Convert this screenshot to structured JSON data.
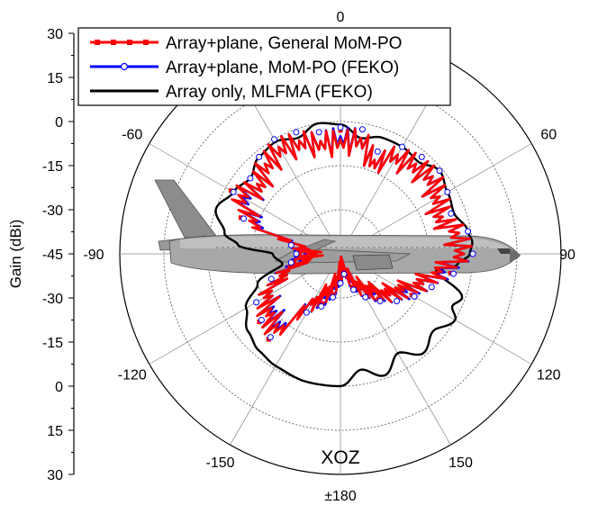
{
  "chart_data": {
    "type": "polar-line",
    "plane_label": "XOZ",
    "ylabel": "Gain (dBi)",
    "radial_axis": {
      "unit": "dBi",
      "min": -45,
      "max": 30,
      "ticks": [
        30,
        15,
        0,
        -15,
        -30,
        -45,
        -30,
        -15,
        0,
        15,
        30
      ],
      "tick_labels": [
        "30",
        "15",
        "0",
        "-15",
        "-30",
        "-45",
        "-30",
        "-15",
        "0",
        "15",
        "30"
      ]
    },
    "angular_axis": {
      "unit": "deg",
      "zero_direction": "top",
      "direction": "clockwise",
      "labels": [
        {
          "angle": 0,
          "text": "0"
        },
        {
          "angle": 60,
          "text": "60"
        },
        {
          "angle": 90,
          "text": "90"
        },
        {
          "angle": 120,
          "text": "120"
        },
        {
          "angle": 150,
          "text": "150"
        },
        {
          "angle": 180,
          "text": "±180"
        },
        {
          "angle": -150,
          "text": "-150"
        },
        {
          "angle": -120,
          "text": "-120"
        },
        {
          "angle": -90,
          "text": "-90"
        },
        {
          "angle": -60,
          "text": "-60"
        }
      ]
    },
    "legend": {
      "position": "top-left",
      "entries": [
        {
          "label": "Array+plane, General MoM-PO",
          "color": "#ff0000",
          "marker": "square"
        },
        {
          "label": "Array+plane, MoM-PO (FEKO)",
          "color": "#0000ff",
          "marker": "open-circle"
        },
        {
          "label": "Array only, MLFMA (FEKO)",
          "color": "#000000",
          "marker": "none"
        }
      ]
    },
    "series": [
      {
        "name": "Array only, MLFMA (FEKO)",
        "color": "#000000",
        "theta": [
          -180,
          -165,
          -150,
          -140,
          -130,
          -120,
          -110,
          -100,
          -90,
          -85,
          -80,
          -70,
          -60,
          -50,
          -40,
          -30,
          -20,
          -10,
          0,
          10,
          20,
          30,
          40,
          50,
          60,
          70,
          80,
          85,
          90,
          95,
          100,
          110,
          115,
          120,
          130,
          140,
          150,
          160,
          170,
          180
        ],
        "r": [
          0,
          0,
          -1,
          -2,
          -4,
          -8,
          -15,
          -25,
          -22,
          -10,
          -5,
          0,
          -3,
          -5,
          -2,
          -1,
          -3,
          0,
          -1,
          -5,
          -3,
          -3,
          -4,
          -1,
          -3,
          -4,
          -1,
          0,
          -1,
          -5,
          -12,
          -1,
          -3,
          0,
          -4,
          -1,
          -6,
          -1,
          -5,
          0
        ]
      },
      {
        "name": "Array+plane, MoM-PO (FEKO)",
        "color": "#0000ff",
        "theta": [
          -180,
          -170,
          -160,
          -150,
          -140,
          -130,
          -120,
          -110,
          -100,
          -90,
          -80,
          -70,
          -60,
          -50,
          -40,
          -30,
          -20,
          -10,
          0,
          10,
          20,
          30,
          40,
          50,
          60,
          70,
          80,
          90,
          100,
          110,
          120,
          130,
          140,
          150,
          160,
          170,
          180
        ],
        "r": [
          -35,
          -30,
          -26,
          -22,
          -8,
          -10,
          -12,
          -20,
          -28,
          -30,
          -28,
          -10,
          -3,
          -5,
          -2,
          0,
          -1,
          -3,
          -2,
          -2,
          -8,
          -3,
          -2,
          -1,
          -3,
          -5,
          -1,
          0,
          -6,
          -12,
          -16,
          -20,
          -24,
          -28,
          -32,
          -38,
          -35
        ]
      },
      {
        "name": "Array+plane, General MoM-PO",
        "color": "#ff0000",
        "theta": [
          -180,
          -170,
          -160,
          -150,
          -140,
          -130,
          -120,
          -110,
          -100,
          -90,
          -80,
          -70,
          -60,
          -50,
          -40,
          -30,
          -20,
          -10,
          0,
          10,
          20,
          30,
          40,
          50,
          60,
          70,
          80,
          90,
          100,
          110,
          120,
          130,
          140,
          150,
          160,
          170,
          180
        ],
        "r": [
          -36,
          -31,
          -27,
          -22,
          -7,
          -9,
          -12,
          -20,
          -29,
          -31,
          -28,
          -9,
          -2,
          -5,
          -2,
          0,
          -1,
          -3,
          -3,
          -2,
          -8,
          -3,
          -2,
          -1,
          -3,
          -5,
          -1,
          0,
          -7,
          -12,
          -17,
          -20,
          -25,
          -28,
          -33,
          -38,
          -36
        ]
      }
    ]
  }
}
